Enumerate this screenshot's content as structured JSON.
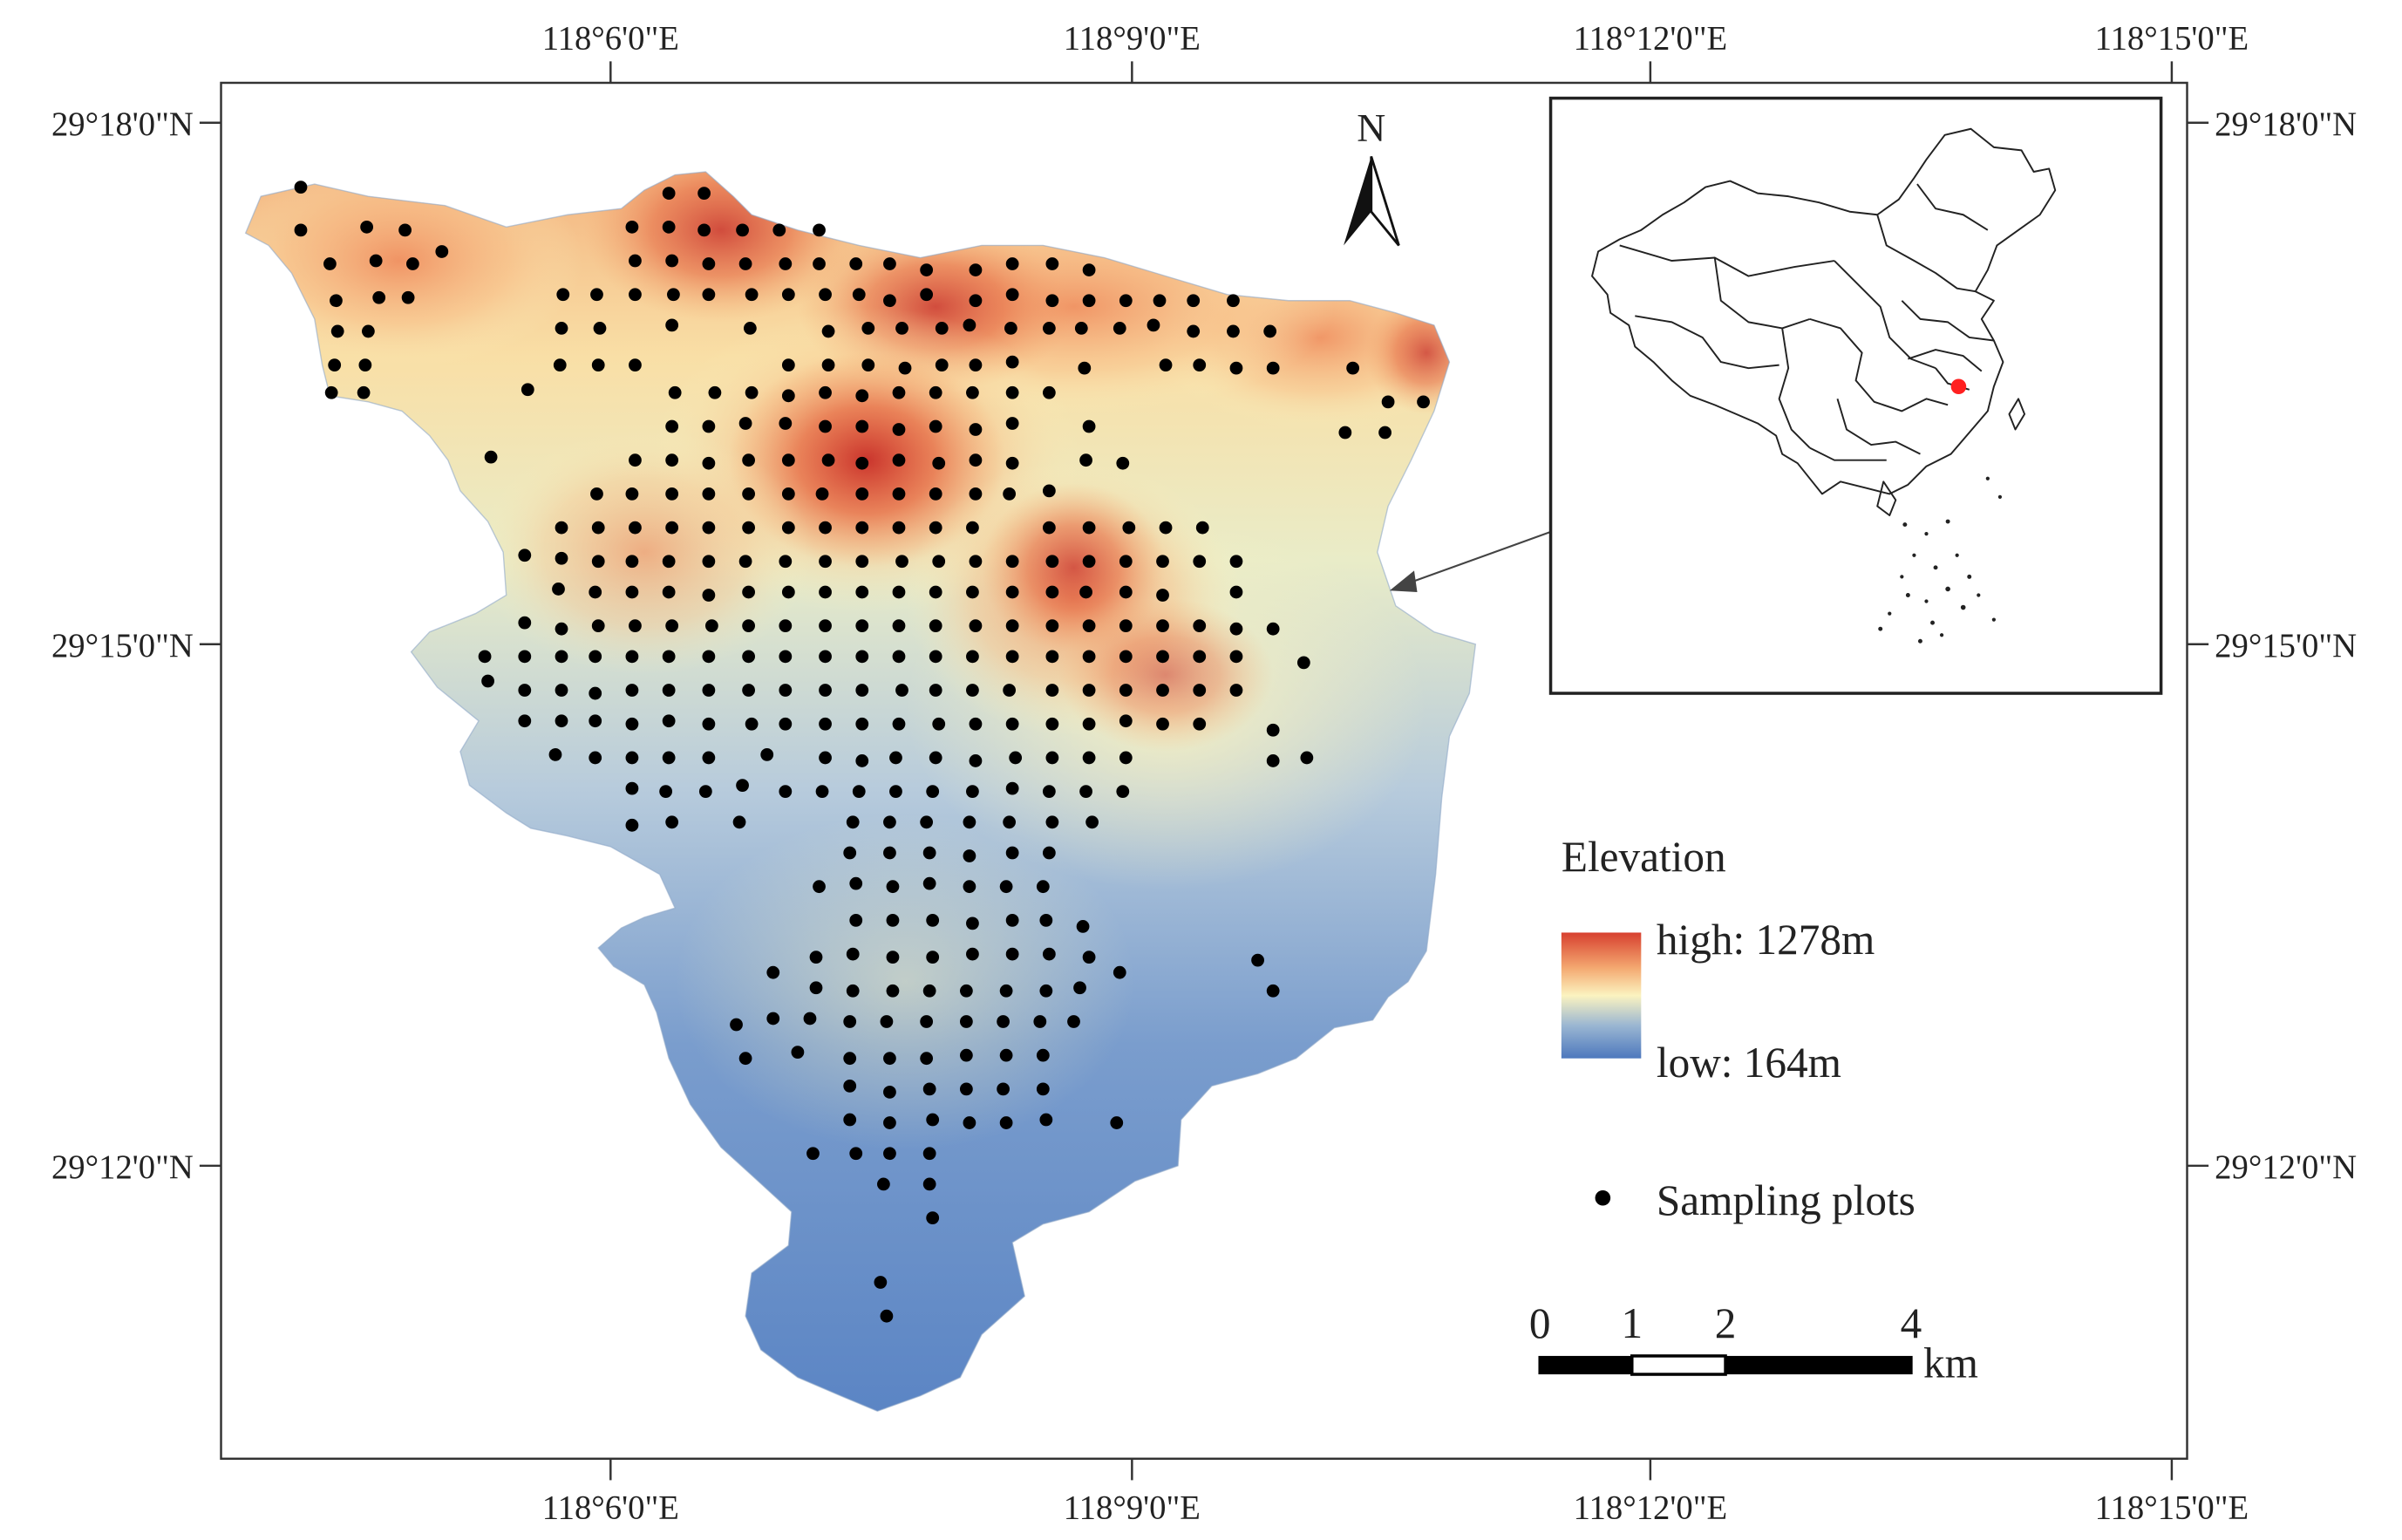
{
  "graticule": {
    "top_labels": [
      "118°6'0\"E",
      "118°9'0\"E",
      "118°12'0\"E",
      "118°15'0\"E"
    ],
    "bottom_labels": [
      "118°6'0\"E",
      "118°9'0\"E",
      "118°12'0\"E",
      "118°15'0\"E"
    ],
    "left_labels": [
      "29°18'0\"N",
      "29°15'0\"N",
      "29°12'0\"N"
    ],
    "right_labels": [
      "29°18'0\"N",
      "29°15'0\"N",
      "29°12'0\"N"
    ]
  },
  "north_arrow": {
    "label": "N"
  },
  "legend": {
    "title": "Elevation",
    "high_label": "high: 1278m",
    "low_label": "low: 164m",
    "points_label": "Sampling plots",
    "ramp_colors": [
      "#d7402f",
      "#f4a870",
      "#fbf3c0",
      "#9ab6d2",
      "#4d78bd"
    ],
    "point_color": "#000000"
  },
  "scale_bar": {
    "ticks": [
      "0",
      "1",
      "2",
      "4"
    ],
    "unit": "km"
  },
  "inset": {
    "highlight_color": "#ff2020"
  },
  "sampling_plots": [
    [
      196,
      122
    ],
    [
      196,
      150
    ],
    [
      239,
      148
    ],
    [
      264,
      150
    ],
    [
      288,
      164
    ],
    [
      215,
      172
    ],
    [
      245,
      170
    ],
    [
      269,
      172
    ],
    [
      219,
      196
    ],
    [
      247,
      194
    ],
    [
      266,
      194
    ],
    [
      220,
      216
    ],
    [
      240,
      216
    ],
    [
      218,
      238
    ],
    [
      238,
      238
    ],
    [
      216,
      256
    ],
    [
      237,
      256
    ],
    [
      436,
      126
    ],
    [
      459,
      126
    ],
    [
      412,
      148
    ],
    [
      436,
      148
    ],
    [
      459,
      150
    ],
    [
      484,
      150
    ],
    [
      508,
      150
    ],
    [
      534,
      150
    ],
    [
      414,
      170
    ],
    [
      438,
      170
    ],
    [
      462,
      172
    ],
    [
      486,
      172
    ],
    [
      512,
      172
    ],
    [
      534,
      172
    ],
    [
      558,
      172
    ],
    [
      580,
      172
    ],
    [
      604,
      176
    ],
    [
      636,
      176
    ],
    [
      660,
      172
    ],
    [
      686,
      172
    ],
    [
      710,
      176
    ],
    [
      367,
      192
    ],
    [
      389,
      192
    ],
    [
      414,
      192
    ],
    [
      439,
      192
    ],
    [
      462,
      192
    ],
    [
      490,
      192
    ],
    [
      514,
      192
    ],
    [
      538,
      192
    ],
    [
      560,
      192
    ],
    [
      580,
      196
    ],
    [
      604,
      192
    ],
    [
      636,
      196
    ],
    [
      660,
      192
    ],
    [
      686,
      196
    ],
    [
      710,
      196
    ],
    [
      734,
      196
    ],
    [
      756,
      196
    ],
    [
      778,
      196
    ],
    [
      804,
      196
    ],
    [
      366,
      214
    ],
    [
      391,
      214
    ],
    [
      438,
      212
    ],
    [
      489,
      214
    ],
    [
      540,
      216
    ],
    [
      566,
      214
    ],
    [
      588,
      214
    ],
    [
      614,
      214
    ],
    [
      632,
      212
    ],
    [
      659,
      214
    ],
    [
      684,
      214
    ],
    [
      705,
      214
    ],
    [
      730,
      214
    ],
    [
      752,
      212
    ],
    [
      778,
      216
    ],
    [
      804,
      216
    ],
    [
      828,
      216
    ],
    [
      365,
      238
    ],
    [
      390,
      238
    ],
    [
      414,
      238
    ],
    [
      514,
      238
    ],
    [
      540,
      238
    ],
    [
      566,
      238
    ],
    [
      590,
      240
    ],
    [
      614,
      238
    ],
    [
      636,
      238
    ],
    [
      660,
      236
    ],
    [
      707,
      240
    ],
    [
      760,
      238
    ],
    [
      782,
      238
    ],
    [
      806,
      240
    ],
    [
      830,
      240
    ],
    [
      882,
      240
    ],
    [
      344,
      254
    ],
    [
      440,
      256
    ],
    [
      466,
      256
    ],
    [
      490,
      256
    ],
    [
      514,
      258
    ],
    [
      538,
      256
    ],
    [
      562,
      258
    ],
    [
      586,
      256
    ],
    [
      610,
      256
    ],
    [
      634,
      256
    ],
    [
      660,
      256
    ],
    [
      684,
      256
    ],
    [
      905,
      262
    ],
    [
      928,
      262
    ],
    [
      438,
      278
    ],
    [
      462,
      278
    ],
    [
      486,
      276
    ],
    [
      512,
      276
    ],
    [
      538,
      278
    ],
    [
      562,
      278
    ],
    [
      586,
      280
    ],
    [
      610,
      278
    ],
    [
      636,
      280
    ],
    [
      660,
      276
    ],
    [
      710,
      278
    ],
    [
      877,
      282
    ],
    [
      903,
      282
    ],
    [
      320,
      298
    ],
    [
      414,
      300
    ],
    [
      438,
      300
    ],
    [
      462,
      302
    ],
    [
      488,
      300
    ],
    [
      514,
      300
    ],
    [
      540,
      300
    ],
    [
      562,
      302
    ],
    [
      586,
      300
    ],
    [
      612,
      302
    ],
    [
      636,
      300
    ],
    [
      660,
      302
    ],
    [
      708,
      300
    ],
    [
      732,
      302
    ],
    [
      389,
      322
    ],
    [
      412,
      322
    ],
    [
      438,
      322
    ],
    [
      462,
      322
    ],
    [
      488,
      322
    ],
    [
      514,
      322
    ],
    [
      536,
      322
    ],
    [
      562,
      322
    ],
    [
      586,
      322
    ],
    [
      610,
      322
    ],
    [
      636,
      322
    ],
    [
      658,
      322
    ],
    [
      684,
      320
    ],
    [
      366,
      344
    ],
    [
      390,
      344
    ],
    [
      414,
      344
    ],
    [
      438,
      344
    ],
    [
      462,
      344
    ],
    [
      488,
      344
    ],
    [
      514,
      344
    ],
    [
      538,
      344
    ],
    [
      562,
      344
    ],
    [
      586,
      344
    ],
    [
      610,
      344
    ],
    [
      634,
      344
    ],
    [
      684,
      344
    ],
    [
      710,
      344
    ],
    [
      736,
      344
    ],
    [
      760,
      344
    ],
    [
      784,
      344
    ],
    [
      342,
      362
    ],
    [
      366,
      364
    ],
    [
      390,
      366
    ],
    [
      412,
      366
    ],
    [
      436,
      366
    ],
    [
      462,
      366
    ],
    [
      486,
      366
    ],
    [
      512,
      366
    ],
    [
      538,
      366
    ],
    [
      562,
      366
    ],
    [
      588,
      366
    ],
    [
      612,
      366
    ],
    [
      636,
      366
    ],
    [
      660,
      366
    ],
    [
      686,
      366
    ],
    [
      710,
      366
    ],
    [
      734,
      366
    ],
    [
      758,
      366
    ],
    [
      782,
      366
    ],
    [
      806,
      366
    ],
    [
      364,
      384
    ],
    [
      388,
      386
    ],
    [
      412,
      386
    ],
    [
      436,
      386
    ],
    [
      462,
      388
    ],
    [
      488,
      386
    ],
    [
      514,
      386
    ],
    [
      538,
      386
    ],
    [
      562,
      386
    ],
    [
      586,
      386
    ],
    [
      610,
      386
    ],
    [
      634,
      386
    ],
    [
      660,
      386
    ],
    [
      686,
      386
    ],
    [
      708,
      386
    ],
    [
      734,
      386
    ],
    [
      758,
      388
    ],
    [
      806,
      386
    ],
    [
      342,
      406
    ],
    [
      366,
      410
    ],
    [
      390,
      408
    ],
    [
      414,
      408
    ],
    [
      438,
      408
    ],
    [
      464,
      408
    ],
    [
      488,
      408
    ],
    [
      512,
      408
    ],
    [
      538,
      408
    ],
    [
      562,
      408
    ],
    [
      586,
      408
    ],
    [
      610,
      408
    ],
    [
      636,
      408
    ],
    [
      660,
      408
    ],
    [
      686,
      408
    ],
    [
      710,
      408
    ],
    [
      734,
      408
    ],
    [
      758,
      408
    ],
    [
      782,
      408
    ],
    [
      806,
      410
    ],
    [
      830,
      410
    ],
    [
      316,
      428
    ],
    [
      342,
      428
    ],
    [
      366,
      428
    ],
    [
      388,
      428
    ],
    [
      412,
      428
    ],
    [
      436,
      428
    ],
    [
      462,
      428
    ],
    [
      488,
      428
    ],
    [
      512,
      428
    ],
    [
      538,
      428
    ],
    [
      562,
      428
    ],
    [
      586,
      428
    ],
    [
      610,
      428
    ],
    [
      634,
      428
    ],
    [
      660,
      428
    ],
    [
      686,
      428
    ],
    [
      710,
      428
    ],
    [
      734,
      428
    ],
    [
      758,
      428
    ],
    [
      782,
      428
    ],
    [
      806,
      428
    ],
    [
      850,
      432
    ],
    [
      318,
      444
    ],
    [
      342,
      450
    ],
    [
      366,
      450
    ],
    [
      388,
      452
    ],
    [
      412,
      450
    ],
    [
      436,
      450
    ],
    [
      462,
      450
    ],
    [
      488,
      450
    ],
    [
      512,
      450
    ],
    [
      538,
      450
    ],
    [
      562,
      450
    ],
    [
      588,
      450
    ],
    [
      610,
      450
    ],
    [
      634,
      450
    ],
    [
      658,
      450
    ],
    [
      686,
      450
    ],
    [
      710,
      450
    ],
    [
      734,
      450
    ],
    [
      758,
      450
    ],
    [
      782,
      450
    ],
    [
      806,
      450
    ],
    [
      342,
      470
    ],
    [
      366,
      470
    ],
    [
      388,
      470
    ],
    [
      412,
      472
    ],
    [
      436,
      470
    ],
    [
      462,
      472
    ],
    [
      490,
      472
    ],
    [
      512,
      472
    ],
    [
      538,
      472
    ],
    [
      562,
      472
    ],
    [
      586,
      472
    ],
    [
      612,
      472
    ],
    [
      636,
      472
    ],
    [
      660,
      472
    ],
    [
      686,
      472
    ],
    [
      710,
      472
    ],
    [
      734,
      470
    ],
    [
      758,
      472
    ],
    [
      782,
      472
    ],
    [
      830,
      476
    ],
    [
      362,
      492
    ],
    [
      388,
      494
    ],
    [
      412,
      494
    ],
    [
      436,
      494
    ],
    [
      462,
      494
    ],
    [
      500,
      492
    ],
    [
      538,
      494
    ],
    [
      562,
      496
    ],
    [
      584,
      494
    ],
    [
      610,
      494
    ],
    [
      636,
      496
    ],
    [
      662,
      494
    ],
    [
      686,
      494
    ],
    [
      710,
      494
    ],
    [
      734,
      494
    ],
    [
      830,
      496
    ],
    [
      852,
      494
    ],
    [
      412,
      514
    ],
    [
      434,
      516
    ],
    [
      460,
      516
    ],
    [
      484,
      512
    ],
    [
      512,
      516
    ],
    [
      536,
      516
    ],
    [
      560,
      516
    ],
    [
      584,
      516
    ],
    [
      608,
      516
    ],
    [
      634,
      516
    ],
    [
      660,
      514
    ],
    [
      684,
      516
    ],
    [
      708,
      516
    ],
    [
      732,
      516
    ],
    [
      412,
      538
    ],
    [
      438,
      536
    ],
    [
      482,
      536
    ],
    [
      556,
      536
    ],
    [
      580,
      536
    ],
    [
      604,
      536
    ],
    [
      632,
      536
    ],
    [
      658,
      536
    ],
    [
      686,
      536
    ],
    [
      712,
      536
    ],
    [
      554,
      556
    ],
    [
      580,
      556
    ],
    [
      606,
      556
    ],
    [
      632,
      558
    ],
    [
      660,
      556
    ],
    [
      684,
      556
    ],
    [
      534,
      578
    ],
    [
      558,
      576
    ],
    [
      582,
      578
    ],
    [
      606,
      576
    ],
    [
      632,
      578
    ],
    [
      656,
      578
    ],
    [
      680,
      578
    ],
    [
      558,
      600
    ],
    [
      582,
      600
    ],
    [
      608,
      600
    ],
    [
      634,
      602
    ],
    [
      660,
      600
    ],
    [
      682,
      600
    ],
    [
      706,
      604
    ],
    [
      532,
      624
    ],
    [
      556,
      622
    ],
    [
      582,
      624
    ],
    [
      608,
      624
    ],
    [
      634,
      622
    ],
    [
      660,
      622
    ],
    [
      684,
      622
    ],
    [
      710,
      624
    ],
    [
      820,
      626
    ],
    [
      504,
      634
    ],
    [
      532,
      644
    ],
    [
      556,
      646
    ],
    [
      582,
      646
    ],
    [
      606,
      646
    ],
    [
      630,
      646
    ],
    [
      656,
      646
    ],
    [
      682,
      646
    ],
    [
      704,
      644
    ],
    [
      730,
      634
    ],
    [
      830,
      646
    ],
    [
      480,
      668
    ],
    [
      504,
      664
    ],
    [
      528,
      664
    ],
    [
      554,
      666
    ],
    [
      578,
      666
    ],
    [
      604,
      666
    ],
    [
      630,
      666
    ],
    [
      654,
      666
    ],
    [
      678,
      666
    ],
    [
      700,
      666
    ],
    [
      486,
      690
    ],
    [
      520,
      686
    ],
    [
      554,
      690
    ],
    [
      580,
      690
    ],
    [
      604,
      690
    ],
    [
      630,
      688
    ],
    [
      656,
      688
    ],
    [
      680,
      688
    ],
    [
      554,
      708
    ],
    [
      580,
      712
    ],
    [
      606,
      710
    ],
    [
      630,
      710
    ],
    [
      654,
      710
    ],
    [
      680,
      710
    ],
    [
      554,
      730
    ],
    [
      580,
      732
    ],
    [
      608,
      730
    ],
    [
      632,
      732
    ],
    [
      656,
      732
    ],
    [
      682,
      730
    ],
    [
      728,
      732
    ],
    [
      530,
      752
    ],
    [
      558,
      752
    ],
    [
      580,
      752
    ],
    [
      606,
      752
    ],
    [
      576,
      772
    ],
    [
      606,
      772
    ],
    [
      608,
      794
    ],
    [
      574,
      836
    ],
    [
      578,
      858
    ]
  ]
}
